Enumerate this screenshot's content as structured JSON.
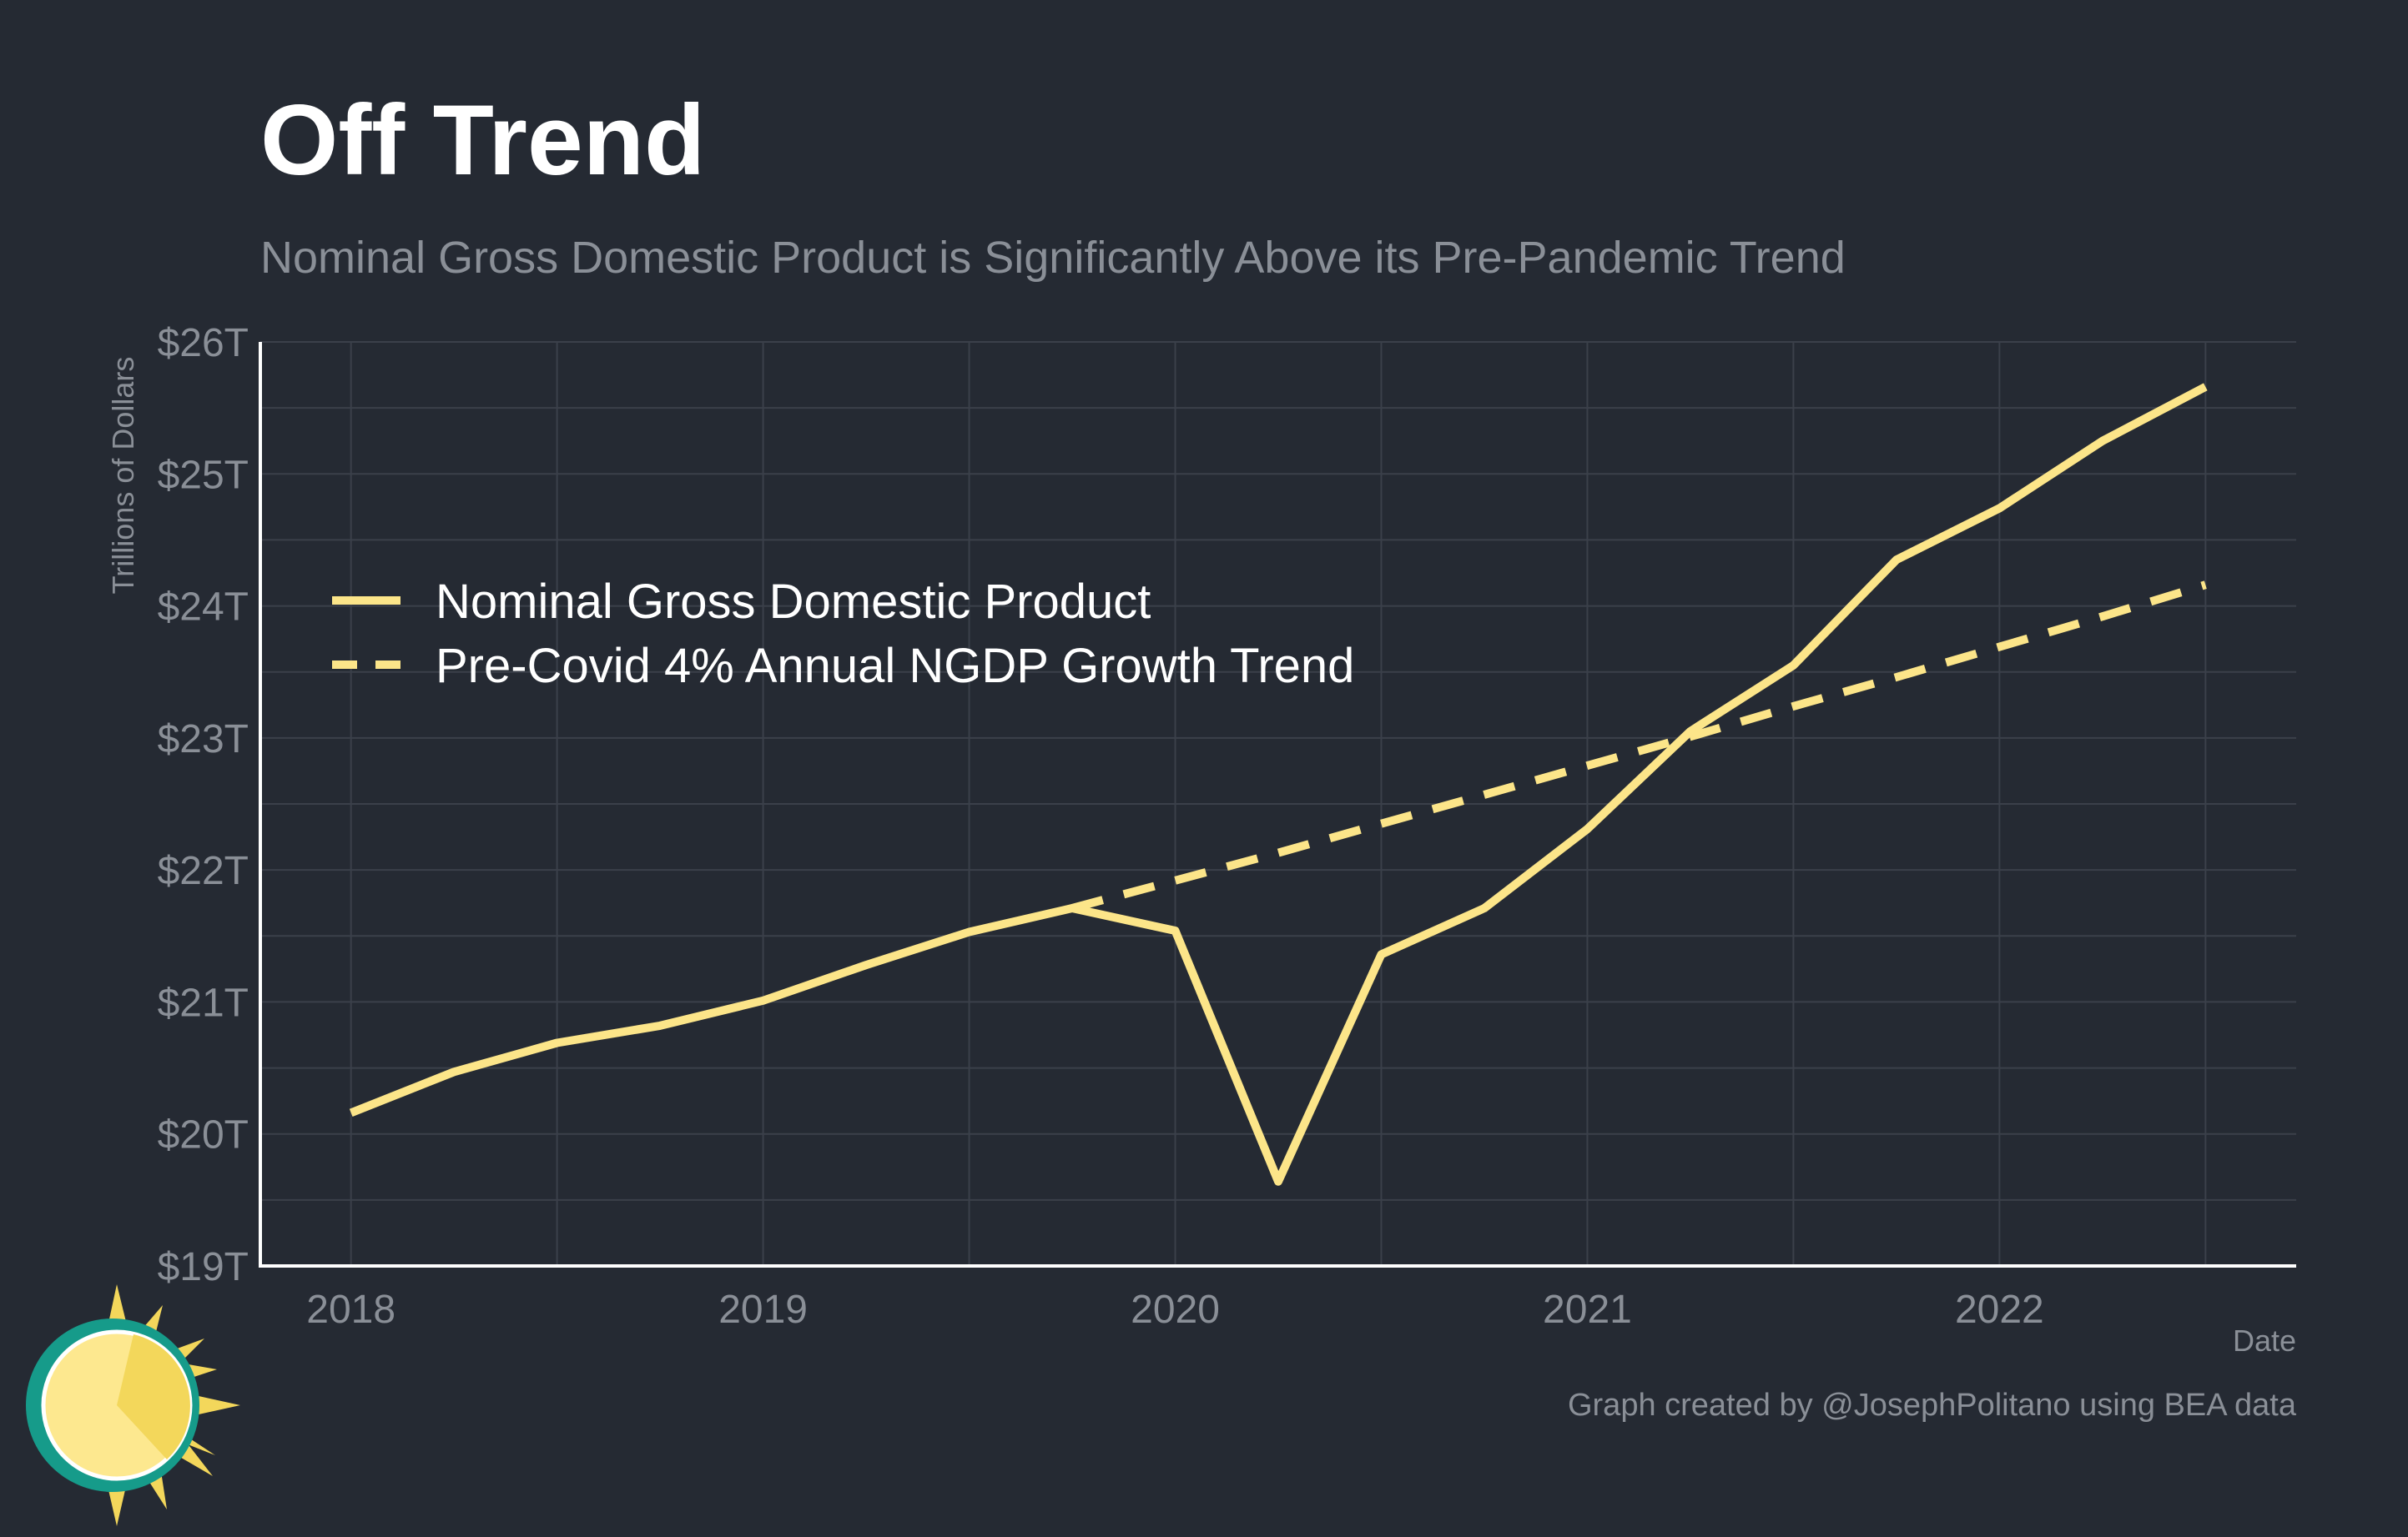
{
  "header": {
    "title": "Off Trend",
    "subtitle": "Nominal Gross Domestic Product is Significantly Above its Pre-Pandemic Trend"
  },
  "footer": {
    "credit": "Graph created by @JosephPolitano using BEA data"
  },
  "colors": {
    "background": "#252a33",
    "series": "#fce589",
    "grid": "#3b404a",
    "axis": "#ffffff",
    "muted_text": "#8a8f97"
  },
  "logo": {
    "icon": "sun-icon"
  },
  "chart_data": {
    "type": "line",
    "xlabel": "Date",
    "ylabel": "Trillions of Dollars",
    "xlim": [
      2017.78,
      2022.72
    ],
    "ylim": [
      19,
      26
    ],
    "x_ticks": [
      2018,
      2019,
      2020,
      2021,
      2022
    ],
    "x_tick_labels": [
      "2018",
      "2019",
      "2020",
      "2021",
      "2022"
    ],
    "y_ticks": [
      19,
      20,
      21,
      22,
      23,
      24,
      25,
      26
    ],
    "y_tick_labels": [
      "$19T",
      "$20T",
      "$21T",
      "$22T",
      "$23T",
      "$24T",
      "$25T",
      "$26T"
    ],
    "grid": true,
    "legend_position": "upper-left",
    "series": [
      {
        "name": "Nominal Gross Domestic Product",
        "style": "solid",
        "x": [
          2018.0,
          2018.25,
          2018.5,
          2018.75,
          2019.0,
          2019.25,
          2019.5,
          2019.75,
          2020.0,
          2020.25,
          2020.5,
          2020.75,
          2021.0,
          2021.25,
          2021.5,
          2021.75,
          2022.0,
          2022.25,
          2022.5
        ],
        "y": [
          20.16,
          20.47,
          20.69,
          20.82,
          21.01,
          21.28,
          21.53,
          21.71,
          21.54,
          19.64,
          21.36,
          21.71,
          22.31,
          23.05,
          23.55,
          24.35,
          24.74,
          25.25,
          25.66
        ]
      },
      {
        "name": "Pre-Covid 4% Annual NGDP Growth Trend",
        "style": "dashed",
        "x": [
          2019.75,
          2020.0,
          2020.25,
          2020.5,
          2020.75,
          2021.0,
          2021.25,
          2021.5,
          2021.75,
          2022.0,
          2022.25,
          2022.5
        ],
        "y": [
          21.71,
          21.92,
          22.13,
          22.35,
          22.57,
          22.79,
          23.01,
          23.24,
          23.46,
          23.69,
          23.92,
          24.16
        ]
      }
    ]
  }
}
